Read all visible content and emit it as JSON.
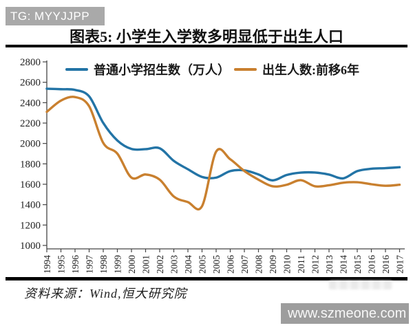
{
  "banner": {
    "text": "TG: MYYJJPP",
    "bg": "#a9a9a9"
  },
  "title": {
    "text": "图表5: 小学生入学数多明显低于出生人口"
  },
  "source": {
    "text": "资料来源：Wind,恒大研究院"
  },
  "site_watermark": {
    "text": "www.szmeone.com"
  },
  "chart_data": {
    "type": "line",
    "title": "图表5: 小学生入学数多明显低于出生人口",
    "categories": [
      "1994",
      "1995",
      "1996",
      "1997",
      "1998",
      "1999",
      "2000",
      "2001",
      "2002",
      "2003",
      "2004",
      "2005",
      "2005",
      "2006",
      "2007",
      "2008",
      "2009",
      "2010",
      "2011",
      "2012",
      "2013",
      "2014",
      "2015",
      "2016",
      "2016",
      "2017"
    ],
    "series": [
      {
        "name": "普通小学招生数（万人）",
        "color": "#2374a6",
        "values": [
          2537,
          2532,
          2525,
          2462,
          2201,
          2029,
          1946,
          1944,
          1953,
          1829,
          1747,
          1672,
          1665,
          1729,
          1736,
          1696,
          1638,
          1691,
          1714,
          1715,
          1695,
          1658,
          1729,
          1752,
          1758,
          1767
        ]
      },
      {
        "name": "出生人数:前移6年",
        "color": "#c9802f",
        "values": [
          2310,
          2420,
          2455,
          2365,
          2005,
          1900,
          1665,
          1696,
          1645,
          1480,
          1425,
          1385,
          1920,
          1845,
          1730,
          1645,
          1580,
          1595,
          1640,
          1580,
          1590,
          1615,
          1620,
          1600,
          1585,
          1595
        ]
      }
    ],
    "ylim": [
      1000,
      2800
    ],
    "ytick_step": 200,
    "xlabel": "",
    "ylabel": "",
    "legend_position": "top",
    "grid": false,
    "axis_color": "#444444",
    "tick_label_color": "#222222"
  }
}
